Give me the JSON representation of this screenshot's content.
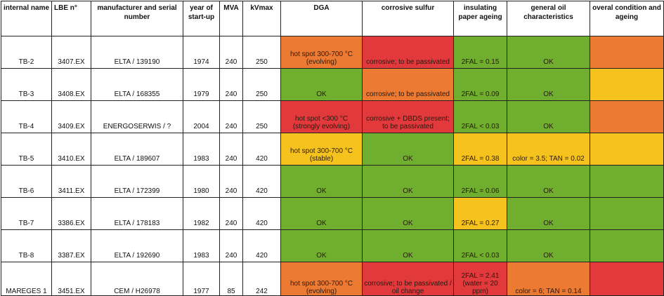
{
  "headers": [
    "internal name",
    "LBE n°",
    "manufacturer and serial number",
    "year of start-up",
    "MVA",
    "kVmax",
    "DGA",
    "corrosive sulfur",
    "insulating paper ageing",
    "general oil characteristics",
    "overal condition and ageing"
  ],
  "colors": {
    "green": "#6fae2e",
    "red": "#e2393c",
    "orange": "#ec7a32",
    "yellow": "#f6c31e"
  },
  "rows": [
    {
      "name": "TB-2",
      "lbe": "3407.EX",
      "manufacturer": "ELTA / 139190",
      "year": "1974",
      "mva": "240",
      "kv": "250",
      "dga": {
        "text": "hot spot 300-700 °C (evolving)",
        "color": "orange"
      },
      "sulfur": {
        "text": "corrosive; to be passivated",
        "color": "red"
      },
      "paper": {
        "text": "2FAL = 0.15",
        "color": "green"
      },
      "oil": {
        "text": "OK",
        "color": "green"
      },
      "overall": {
        "color": "orange"
      }
    },
    {
      "name": "TB-3",
      "lbe": "3408.EX",
      "manufacturer": "ELTA / 168355",
      "year": "1979",
      "mva": "240",
      "kv": "250",
      "dga": {
        "text": "OK",
        "color": "green"
      },
      "sulfur": {
        "text": "corrosive; to be passivated",
        "color": "orange"
      },
      "paper": {
        "text": "2FAL = 0.09",
        "color": "green"
      },
      "oil": {
        "text": "OK",
        "color": "green"
      },
      "overall": {
        "color": "yellow"
      }
    },
    {
      "name": "TB-4",
      "lbe": "3409.EX",
      "manufacturer": "ENERGOSERWIS / ?",
      "year": "2004",
      "mva": "240",
      "kv": "250",
      "dga": {
        "text": "hot spot <300 °C (strongly evolving)",
        "color": "red"
      },
      "sulfur": {
        "text": "corrosive + DBDS present; to be passivated",
        "color": "red"
      },
      "paper": {
        "text": "2FAL < 0.03",
        "color": "green"
      },
      "oil": {
        "text": "OK",
        "color": "green"
      },
      "overall": {
        "color": "orange"
      }
    },
    {
      "name": "TB-5",
      "lbe": "3410.EX",
      "manufacturer": "ELTA / 189607",
      "year": "1983",
      "mva": "240",
      "kv": "420",
      "dga": {
        "text": "hot spot 300-700 °C (stable)",
        "color": "yellow"
      },
      "sulfur": {
        "text": "OK",
        "color": "green"
      },
      "paper": {
        "text": "2FAL = 0.38",
        "color": "yellow"
      },
      "oil": {
        "text": "color = 3.5; TAN = 0.02",
        "color": "yellow"
      },
      "overall": {
        "color": "yellow"
      }
    },
    {
      "name": "TB-6",
      "lbe": "3411.EX",
      "manufacturer": "ELTA / 172399",
      "year": "1980",
      "mva": "240",
      "kv": "420",
      "dga": {
        "text": "OK",
        "color": "green"
      },
      "sulfur": {
        "text": "OK",
        "color": "green"
      },
      "paper": {
        "text": "2FAL = 0.06",
        "color": "green"
      },
      "oil": {
        "text": "OK",
        "color": "green"
      },
      "overall": {
        "color": "green"
      }
    },
    {
      "name": "TB-7",
      "lbe": "3386.EX",
      "manufacturer": "ELTA / 178183",
      "year": "1982",
      "mva": "240",
      "kv": "420",
      "dga": {
        "text": "OK",
        "color": "green"
      },
      "sulfur": {
        "text": "OK",
        "color": "green"
      },
      "paper": {
        "text": "2FAL = 0.27",
        "color": "yellow"
      },
      "oil": {
        "text": "OK",
        "color": "green"
      },
      "overall": {
        "color": "green"
      }
    },
    {
      "name": "TB-8",
      "lbe": "3387.EX",
      "manufacturer": "ELTA / 192690",
      "year": "1983",
      "mva": "240",
      "kv": "420",
      "dga": {
        "text": "OK",
        "color": "green"
      },
      "sulfur": {
        "text": "OK",
        "color": "green"
      },
      "paper": {
        "text": "2FAL < 0.03",
        "color": "green"
      },
      "oil": {
        "text": "OK",
        "color": "green"
      },
      "overall": {
        "color": "green"
      }
    },
    {
      "name": "MAREGES 1",
      "lbe": "3451.EX",
      "manufacturer": "CEM / H26978",
      "year": "1977",
      "mva": "85",
      "kv": "242",
      "dga": {
        "text": "hot spot 300-700 °C (evolving)",
        "color": "orange"
      },
      "sulfur": {
        "text": "corrosive; to be passivated / oil change",
        "color": "red"
      },
      "paper": {
        "text": "2FAL = 2.41 (water = 20 ppm)",
        "color": "red"
      },
      "oil": {
        "text": "color = 6; TAN = 0.14",
        "color": "orange"
      },
      "overall": {
        "color": "red"
      }
    }
  ]
}
